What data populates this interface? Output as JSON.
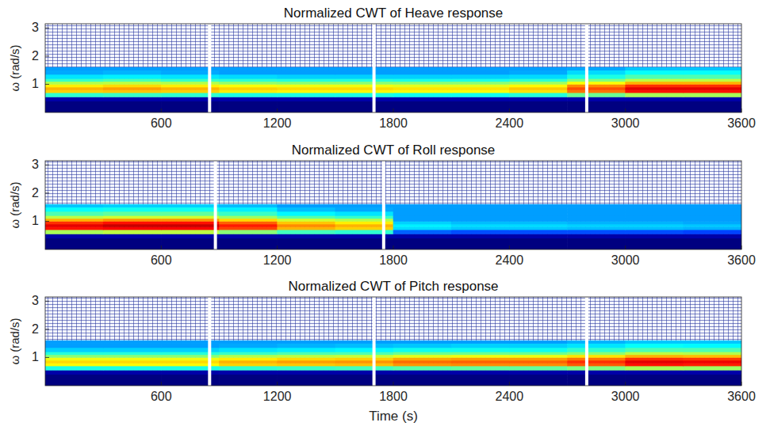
{
  "chart_data": [
    {
      "type": "heatmap",
      "title": "Normalized CWT of Heave response",
      "y_label": "ω (rad/s)",
      "xlim": [
        0,
        3600
      ],
      "ylim": [
        0,
        3.15
      ],
      "xticks": [
        600,
        1200,
        1800,
        2400,
        3000,
        3600
      ],
      "yticks": [
        1,
        2,
        3
      ],
      "x_edges": [
        0,
        300,
        600,
        900,
        1200,
        1500,
        1800,
        2100,
        2400,
        2700,
        3000,
        3300,
        3600
      ],
      "y_edges": [
        0,
        0.4,
        0.55,
        0.7,
        0.8,
        0.9,
        1.0,
        1.1,
        1.2,
        1.35,
        1.5,
        1.6
      ],
      "zlim": [
        0,
        1
      ],
      "separators": [
        850,
        1700,
        2800
      ],
      "cells": [
        [
          0,
          0,
          0,
          0,
          0,
          0,
          0,
          0,
          0,
          0,
          0,
          0
        ],
        [
          0.04,
          0.04,
          0.04,
          0.04,
          0.04,
          0.04,
          0.04,
          0.04,
          0.04,
          0.04,
          0.04,
          0.04
        ],
        [
          0.42,
          0.43,
          0.42,
          0.4,
          0.4,
          0.4,
          0.39,
          0.39,
          0.41,
          0.48,
          0.54,
          0.54
        ],
        [
          0.67,
          0.68,
          0.67,
          0.64,
          0.63,
          0.63,
          0.62,
          0.62,
          0.65,
          0.76,
          0.86,
          0.86
        ],
        [
          0.7,
          0.72,
          0.7,
          0.67,
          0.66,
          0.66,
          0.65,
          0.65,
          0.68,
          0.8,
          0.9,
          0.9
        ],
        [
          0.64,
          0.66,
          0.64,
          0.62,
          0.61,
          0.61,
          0.6,
          0.6,
          0.63,
          0.74,
          0.83,
          0.83
        ],
        [
          0.55,
          0.56,
          0.55,
          0.52,
          0.51,
          0.51,
          0.51,
          0.51,
          0.53,
          0.62,
          0.7,
          0.7
        ],
        [
          0.43,
          0.45,
          0.43,
          0.42,
          0.41,
          0.41,
          0.4,
          0.4,
          0.42,
          0.5,
          0.56,
          0.56
        ],
        [
          0.35,
          0.36,
          0.35,
          0.34,
          0.33,
          0.33,
          0.33,
          0.33,
          0.34,
          0.4,
          0.45,
          0.45
        ],
        [
          0.29,
          0.3,
          0.29,
          0.28,
          0.28,
          0.28,
          0.28,
          0.28,
          0.29,
          0.34,
          0.38,
          0.38
        ],
        [
          0.28,
          0.28,
          0.28,
          0.28,
          0.28,
          0.28,
          0.28,
          0.28,
          0.28,
          0.29,
          0.32,
          0.32
        ]
      ]
    },
    {
      "type": "heatmap",
      "title": "Normalized CWT of Roll response",
      "y_label": "ω (rad/s)",
      "xlim": [
        0,
        3600
      ],
      "ylim": [
        0,
        3.15
      ],
      "xticks": [
        600,
        1200,
        1800,
        2400,
        3000,
        3600
      ],
      "yticks": [
        1,
        2,
        3
      ],
      "x_edges": [
        0,
        300,
        600,
        900,
        1200,
        1500,
        1800,
        2100,
        2400,
        2700,
        3000,
        3300,
        3600
      ],
      "y_edges": [
        0,
        0.4,
        0.55,
        0.7,
        0.8,
        0.9,
        1.0,
        1.1,
        1.2,
        1.35,
        1.5,
        1.6
      ],
      "zlim": [
        0,
        1
      ],
      "separators": [
        880,
        1750
      ],
      "cells": [
        [
          0,
          0,
          0,
          0,
          0,
          0,
          0,
          0,
          0,
          0,
          0,
          0
        ],
        [
          0.04,
          0.04,
          0.04,
          0.04,
          0.04,
          0.04,
          0.04,
          0.04,
          0.04,
          0.04,
          0.04,
          0.04
        ],
        [
          0.54,
          0.56,
          0.56,
          0.51,
          0.44,
          0.42,
          0.22,
          0.2,
          0.2,
          0.2,
          0.2,
          0.19
        ],
        [
          0.86,
          0.88,
          0.88,
          0.81,
          0.7,
          0.67,
          0.34,
          0.32,
          0.32,
          0.31,
          0.31,
          0.3
        ],
        [
          0.9,
          0.93,
          0.93,
          0.85,
          0.74,
          0.7,
          0.36,
          0.34,
          0.34,
          0.33,
          0.33,
          0.32
        ],
        [
          0.83,
          0.86,
          0.86,
          0.78,
          0.68,
          0.64,
          0.33,
          0.31,
          0.31,
          0.3,
          0.3,
          0.29
        ],
        [
          0.7,
          0.73,
          0.73,
          0.66,
          0.58,
          0.55,
          0.28,
          0.28,
          0.28,
          0.28,
          0.28,
          0.28
        ],
        [
          0.56,
          0.58,
          0.58,
          0.53,
          0.46,
          0.43,
          0.28,
          0.28,
          0.28,
          0.28,
          0.28,
          0.28
        ],
        [
          0.45,
          0.47,
          0.47,
          0.43,
          0.37,
          0.35,
          0.28,
          0.28,
          0.28,
          0.28,
          0.28,
          0.28
        ],
        [
          0.38,
          0.39,
          0.39,
          0.36,
          0.31,
          0.29,
          0.28,
          0.28,
          0.28,
          0.28,
          0.28,
          0.28
        ],
        [
          0.32,
          0.33,
          0.33,
          0.31,
          0.28,
          0.28,
          0.28,
          0.28,
          0.28,
          0.28,
          0.28,
          0.28
        ]
      ]
    },
    {
      "type": "heatmap",
      "title": "Normalized CWT of Pitch response",
      "y_label": "ω (rad/s)",
      "x_label": "Time (s)",
      "xlim": [
        0,
        3600
      ],
      "ylim": [
        0,
        3.15
      ],
      "xticks": [
        600,
        1200,
        1800,
        2400,
        3000,
        3600
      ],
      "yticks": [
        1,
        2,
        3
      ],
      "x_edges": [
        0,
        300,
        600,
        900,
        1200,
        1500,
        1800,
        2100,
        2400,
        2700,
        3000,
        3300,
        3600
      ],
      "y_edges": [
        0,
        0.4,
        0.55,
        0.7,
        0.8,
        0.9,
        1.0,
        1.1,
        1.2,
        1.35,
        1.5,
        1.6
      ],
      "zlim": [
        0,
        1
      ],
      "separators": [
        850,
        1700,
        2800
      ],
      "cells": [
        [
          0,
          0,
          0,
          0,
          0,
          0,
          0,
          0,
          0,
          0,
          0,
          0
        ],
        [
          0.04,
          0.04,
          0.04,
          0.04,
          0.04,
          0.04,
          0.04,
          0.04,
          0.04,
          0.04,
          0.04,
          0.04
        ],
        [
          0.4,
          0.4,
          0.4,
          0.42,
          0.43,
          0.44,
          0.46,
          0.47,
          0.47,
          0.5,
          0.54,
          0.53
        ],
        [
          0.63,
          0.63,
          0.63,
          0.67,
          0.68,
          0.69,
          0.73,
          0.74,
          0.74,
          0.79,
          0.86,
          0.85
        ],
        [
          0.66,
          0.66,
          0.66,
          0.7,
          0.72,
          0.73,
          0.77,
          0.78,
          0.78,
          0.83,
          0.9,
          0.89
        ],
        [
          0.61,
          0.61,
          0.61,
          0.64,
          0.66,
          0.67,
          0.71,
          0.72,
          0.72,
          0.76,
          0.83,
          0.82
        ],
        [
          0.51,
          0.51,
          0.51,
          0.55,
          0.56,
          0.57,
          0.6,
          0.61,
          0.61,
          0.65,
          0.7,
          0.69
        ],
        [
          0.41,
          0.41,
          0.41,
          0.43,
          0.45,
          0.45,
          0.48,
          0.48,
          0.48,
          0.51,
          0.56,
          0.55
        ],
        [
          0.33,
          0.33,
          0.33,
          0.35,
          0.36,
          0.37,
          0.39,
          0.39,
          0.39,
          0.42,
          0.45,
          0.45
        ],
        [
          0.28,
          0.28,
          0.28,
          0.29,
          0.3,
          0.31,
          0.32,
          0.33,
          0.33,
          0.35,
          0.38,
          0.37
        ],
        [
          0.28,
          0.28,
          0.28,
          0.28,
          0.28,
          0.28,
          0.28,
          0.28,
          0.28,
          0.3,
          0.32,
          0.32
        ]
      ]
    }
  ]
}
